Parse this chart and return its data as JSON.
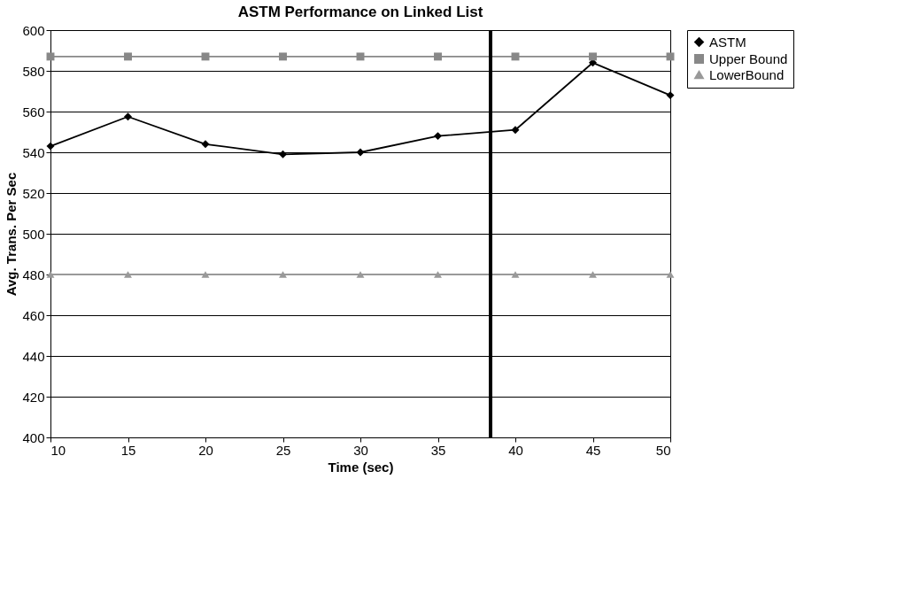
{
  "chart_data": {
    "type": "line",
    "title": "ASTM Performance on Linked List",
    "xlabel": "Time (sec)",
    "ylabel": "Avg. Trans. Per Sec",
    "x": [
      10,
      15,
      20,
      25,
      30,
      35,
      40,
      45,
      50
    ],
    "series": [
      {
        "name": "ASTM",
        "color": "#000000",
        "marker": "diamond",
        "values": [
          543,
          557.5,
          544,
          539,
          540,
          548,
          551,
          584,
          568
        ]
      },
      {
        "name": "Upper Bound",
        "color": "#888888",
        "marker": "square",
        "values": [
          587,
          587,
          587,
          587,
          587,
          587,
          587,
          587,
          587
        ]
      },
      {
        "name": "LowerBound",
        "color": "#999999",
        "marker": "triangle",
        "values": [
          480,
          480,
          480,
          480,
          480,
          480,
          480,
          480,
          480
        ]
      }
    ],
    "xlim": [
      10,
      50
    ],
    "xticks": [
      10,
      15,
      20,
      25,
      30,
      35,
      40,
      45,
      50
    ],
    "ylim": [
      400,
      600
    ],
    "yticks": [
      400,
      420,
      440,
      460,
      480,
      500,
      520,
      540,
      560,
      580,
      600
    ],
    "ref_lines": [
      {
        "axis": "x",
        "value": 38.4,
        "label": null,
        "color": "#000000"
      }
    ],
    "grid": "y",
    "legend": "right",
    "line_style": "solid"
  }
}
